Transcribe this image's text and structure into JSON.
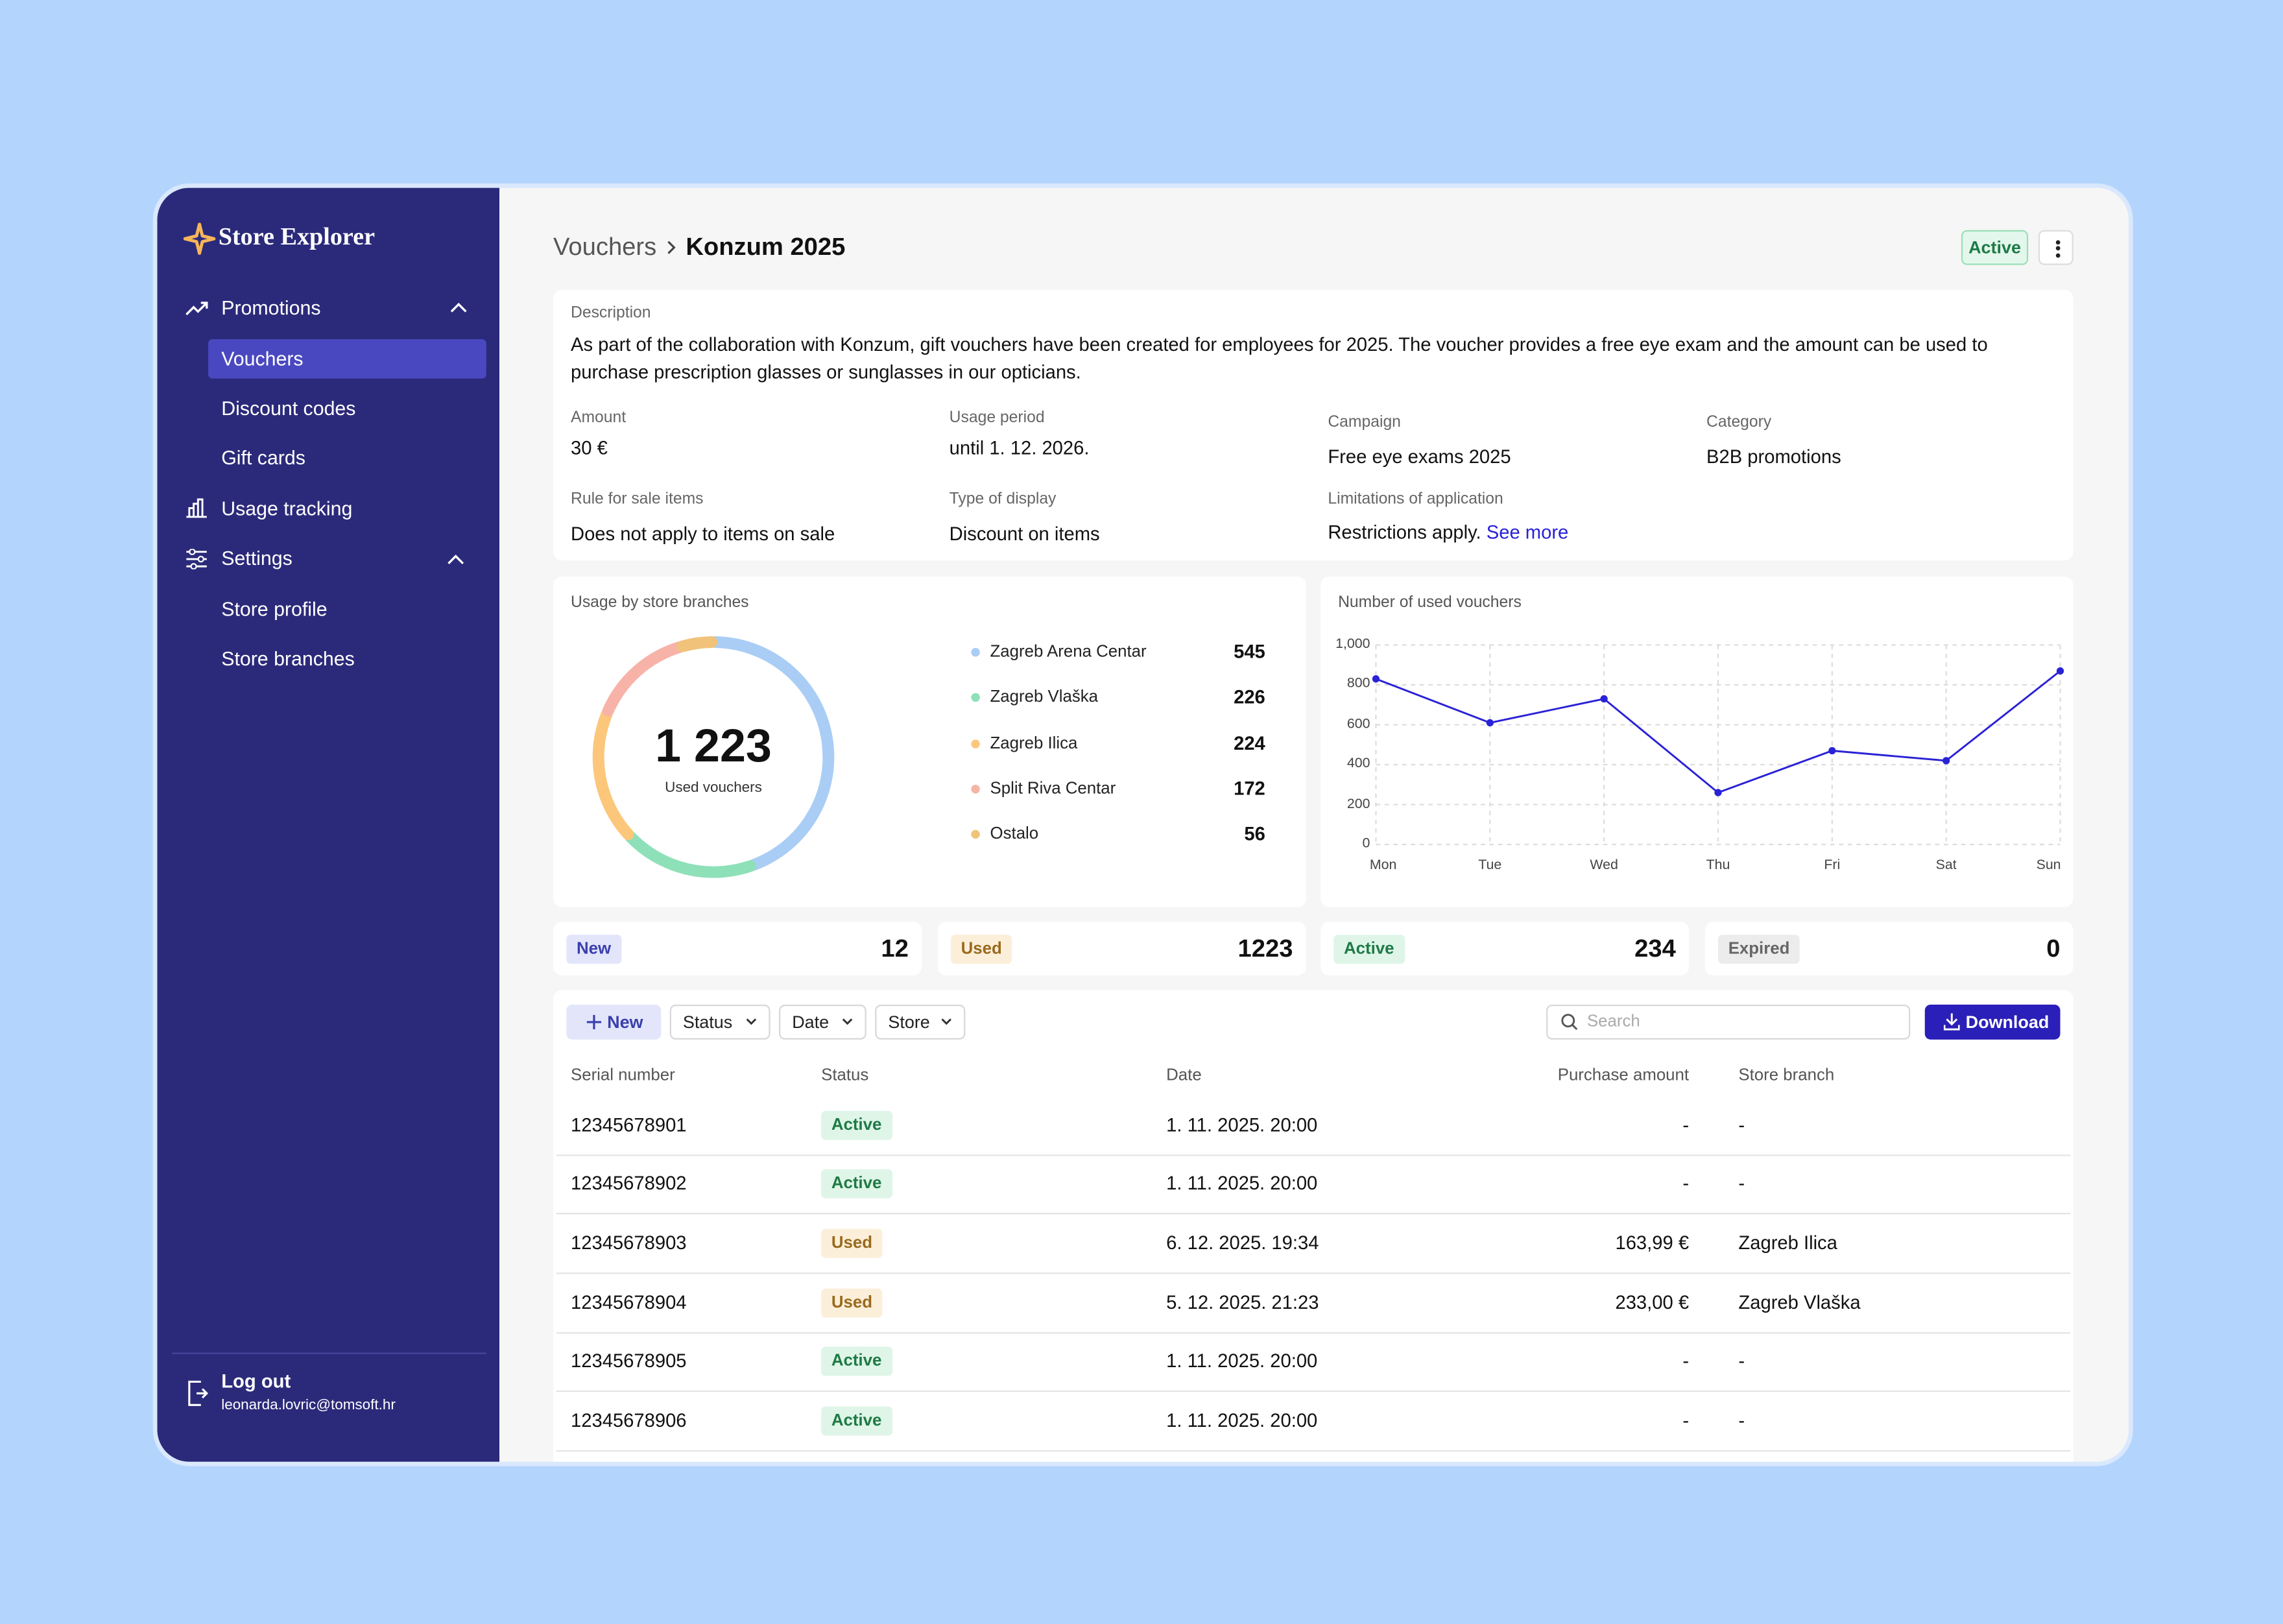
{
  "sidebar": {
    "brand": "Store Explorer",
    "nav": [
      {
        "label": "Promotions"
      },
      {
        "label": "Vouchers"
      },
      {
        "label": "Discount codes"
      },
      {
        "label": "Gift cards"
      },
      {
        "label": "Usage tracking"
      },
      {
        "label": "Settings"
      },
      {
        "label": "Store profile"
      },
      {
        "label": "Store branches"
      }
    ],
    "logout": "Log out",
    "email": "leonarda.lovric@tomsoft.hr"
  },
  "header": {
    "breadcrumb": [
      "Vouchers",
      "Konzum 2025"
    ],
    "status": "Active"
  },
  "details": {
    "description_label": "Description",
    "description": "As part of the collaboration with Konzum, gift vouchers have been created for employees for 2025. The voucher provides a free eye exam and the amount can be used to purchase prescription glasses or sunglasses in our opticians.",
    "fields": [
      {
        "label": "Amount",
        "value": "30 €"
      },
      {
        "label": "Usage period",
        "value": "until 1. 12. 2026."
      },
      {
        "label": "Campaign",
        "value": "Free eye exams 2025"
      },
      {
        "label": "Category",
        "value": "B2B promotions"
      },
      {
        "label": "Rule for sale items",
        "value": "Does not apply to items on sale"
      },
      {
        "label": "Type of display",
        "value": "Discount on items"
      }
    ],
    "limitations": {
      "label": "Limitations of application",
      "value": "Restrictions apply.",
      "link": "See more"
    }
  },
  "chart_data": [
    {
      "type": "donut",
      "title": "Usage by store branches",
      "categories": [
        "Zagreb Arena Centar",
        "Zagreb Vlaška",
        "Zagreb Ilica",
        "Split Riva Centar",
        "Ostalo"
      ],
      "values": [
        545,
        226,
        224,
        172,
        56
      ],
      "colors": [
        "#a9cdf5",
        "#8ee0b8",
        "#fcc77a",
        "#f7b3a8",
        "#f0c27a"
      ],
      "center_value": "1 223",
      "center_label": "Used vouchers"
    },
    {
      "type": "line",
      "title": "Number of used vouchers",
      "categories": [
        "Mon",
        "Tue",
        "Wed",
        "Thu",
        "Fri",
        "Sat",
        "Sun"
      ],
      "values": [
        830,
        610,
        730,
        260,
        470,
        420,
        870
      ],
      "color": "#2a22d6",
      "ylim": [
        0,
        1000
      ],
      "yticks": [
        0,
        200,
        400,
        600,
        800,
        {
          "value": 1000,
          "label": "1,000"
        }
      ],
      "grid": true
    }
  ],
  "stats": [
    {
      "label": "New",
      "value": 12
    },
    {
      "label": "Used",
      "value": 1223
    },
    {
      "label": "Active",
      "value": 234
    },
    {
      "label": "Expired",
      "value": 0
    }
  ],
  "toolbar": {
    "new": "New",
    "filters": [
      "Status",
      "Date",
      "Store"
    ],
    "search_placeholder": "Search",
    "download": "Download"
  },
  "table": {
    "columns": [
      "Serial number",
      "Status",
      "Date",
      "Purchase amount",
      "Store branch"
    ],
    "rows": [
      [
        "12345678901",
        "Active",
        "1. 11. 2025. 20:00",
        "-",
        "-"
      ],
      [
        "12345678902",
        "Active",
        "1. 11. 2025. 20:00",
        "-",
        "-"
      ],
      [
        "12345678903",
        "Used",
        "6. 12. 2025. 19:34",
        "163,99 €",
        "Zagreb Ilica"
      ],
      [
        "12345678904",
        "Used",
        "5. 12. 2025. 21:23",
        "233,00 €",
        "Zagreb Vlaška"
      ],
      [
        "12345678905",
        "Active",
        "1. 11. 2025. 20:00",
        "-",
        "-"
      ],
      [
        "12345678906",
        "Active",
        "1. 11. 2025. 20:00",
        "-",
        "-"
      ]
    ]
  }
}
